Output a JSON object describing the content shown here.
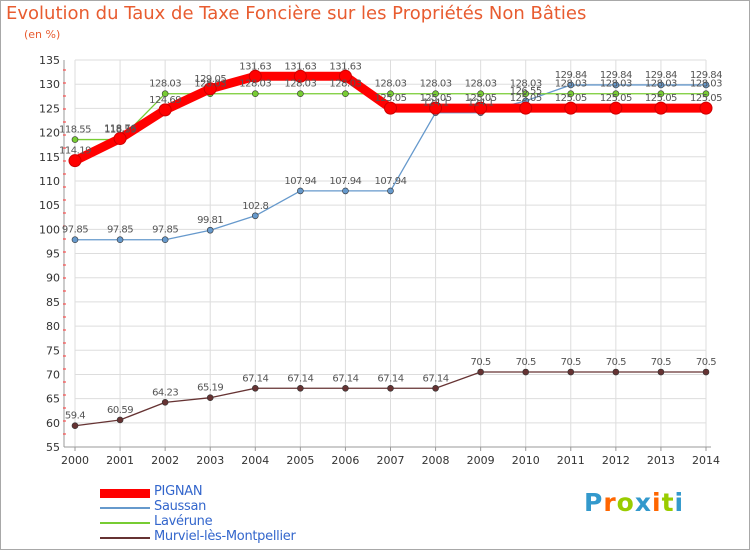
{
  "chart_data": {
    "type": "line",
    "title": "Evolution du Taux de Taxe Foncière sur les Propriétés Non Bâties",
    "ylabel": "(en %)",
    "xlabel": "",
    "x": [
      "2000",
      "2001",
      "2002",
      "2003",
      "2004",
      "2005",
      "2006",
      "2007",
      "2008",
      "2009",
      "2010",
      "2011",
      "2012",
      "2013",
      "2014"
    ],
    "ylim": [
      55,
      135
    ],
    "yticks": [
      "55",
      "60",
      "65",
      "70",
      "75",
      "80",
      "85",
      "90",
      "95",
      "100",
      "105",
      "110",
      "115",
      "120",
      "125",
      "130",
      "135"
    ],
    "grid": true,
    "series": [
      {
        "name": "PIGNAN",
        "color": "#ff0000",
        "values": [
          114.19,
          118.76,
          124.69,
          129.05,
          131.63,
          131.63,
          131.63,
          125.05,
          125.05,
          125.05,
          125.05,
          125.05,
          125.05,
          125.05,
          125.05
        ],
        "labels": [
          "114.19",
          "118.76",
          "124.69",
          "129.05",
          "131.63",
          "131.63",
          "131.63",
          "125.05",
          "125.05",
          "125.05",
          "125.05",
          "125.05",
          "125.05",
          "125.05",
          "125.05"
        ]
      },
      {
        "name": "Saussan",
        "color": "#6699cc",
        "values": [
          97.85,
          97.85,
          97.85,
          99.81,
          102.8,
          107.94,
          107.94,
          107.94,
          124.1,
          124.1,
          126.55,
          129.84,
          129.84,
          129.84,
          129.84
        ],
        "labels": [
          "97.85",
          "97.85",
          "97.85",
          "99.81",
          "102.8",
          "107.94",
          "107.94",
          "107.94",
          "124.1",
          "124.1",
          "126.55",
          "129.84",
          "129.84",
          "129.84",
          "129.84"
        ]
      },
      {
        "name": "Lavérune",
        "color": "#77cc33",
        "values": [
          118.55,
          118.55,
          128.03,
          128.03,
          128.03,
          128.03,
          128.03,
          128.03,
          128.03,
          128.03,
          128.03,
          128.03,
          128.03,
          128.03,
          128.03
        ],
        "labels": [
          "118.55",
          "118.55",
          "128.03",
          "128.03",
          "128.03",
          "128.03",
          "128.03",
          "128.03",
          "128.03",
          "128.03",
          "128.03",
          "128.03",
          "128.03",
          "128.03",
          "128.03"
        ]
      },
      {
        "name": "Murviel-lès-Montpellier",
        "color": "#663333",
        "values": [
          59.4,
          60.59,
          64.23,
          65.19,
          67.14,
          67.14,
          67.14,
          67.14,
          67.14,
          70.5,
          70.5,
          70.5,
          70.5,
          70.5,
          70.5
        ],
        "labels": [
          "59.4",
          "60.59",
          "64.23",
          "65.19",
          "67.14",
          "67.14",
          "67.14",
          "67.14",
          "67.14",
          "70.5",
          "70.5",
          "70.5",
          "70.5",
          "70.5",
          "70.5"
        ]
      }
    ]
  },
  "logo": {
    "letters": [
      "P",
      "r",
      "o",
      "x",
      "i",
      "t",
      "i"
    ],
    "colors": [
      "#3399cc",
      "#ff6600",
      "#99cc00",
      "#3399cc",
      "#ff6600",
      "#99cc00",
      "#3399cc"
    ]
  }
}
